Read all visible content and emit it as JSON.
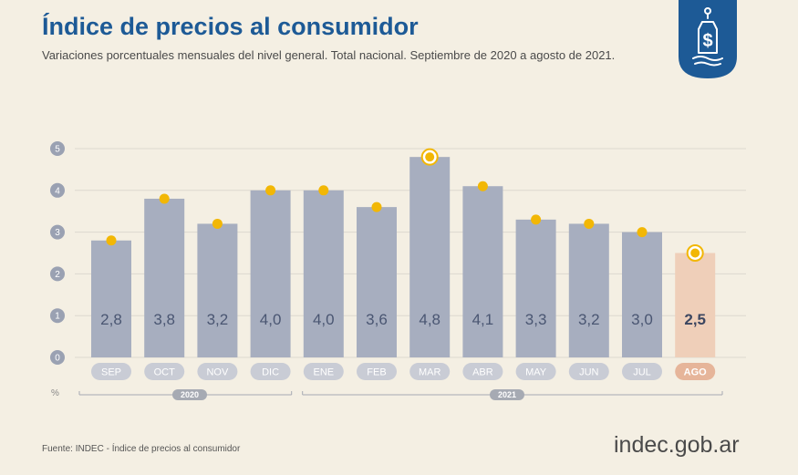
{
  "header": {
    "title": "Índice de precios al consumidor",
    "subtitle": "Variaciones porcentuales mensuales del nivel general. Total nacional. Septiembre de 2020 a agosto de 2021."
  },
  "badge_icon": "price-tag-dollar-icon",
  "footer": {
    "source": "Fuente: INDEC - Índice de precios al consumidor",
    "brand_main": "indec",
    "brand_suffix": ".gob.ar"
  },
  "colors": {
    "title": "#1d5a96",
    "bar": "#a7aebf",
    "bar_highlight": "#efcfb9",
    "tick_pill": "#c9ccd5",
    "tick_pill_highlight": "#e6b59a",
    "dot": "#f2b705",
    "badge": "#1d5a96"
  },
  "chart_data": {
    "type": "bar",
    "categories": [
      "SEP",
      "OCT",
      "NOV",
      "DIC",
      "ENE",
      "FEB",
      "MAR",
      "ABR",
      "MAY",
      "JUN",
      "JUL",
      "AGO"
    ],
    "values": [
      2.8,
      3.8,
      3.2,
      4.0,
      4.0,
      3.6,
      4.8,
      4.1,
      3.3,
      3.2,
      3.0,
      2.5
    ],
    "value_labels": [
      "2,8",
      "3,8",
      "3,2",
      "4,0",
      "4,0",
      "3,6",
      "4,8",
      "4,1",
      "3,3",
      "3,2",
      "3,0",
      "2,5"
    ],
    "highlight_index": 11,
    "ringed_indices": [
      6,
      11
    ],
    "ylim": [
      0,
      5
    ],
    "yticks": [
      0,
      1,
      2,
      3,
      4,
      5
    ],
    "ylabel": "%",
    "grid": true,
    "year_groups": [
      {
        "label": "2020",
        "start": 0,
        "end": 3
      },
      {
        "label": "2021",
        "start": 4,
        "end": 11
      }
    ]
  }
}
